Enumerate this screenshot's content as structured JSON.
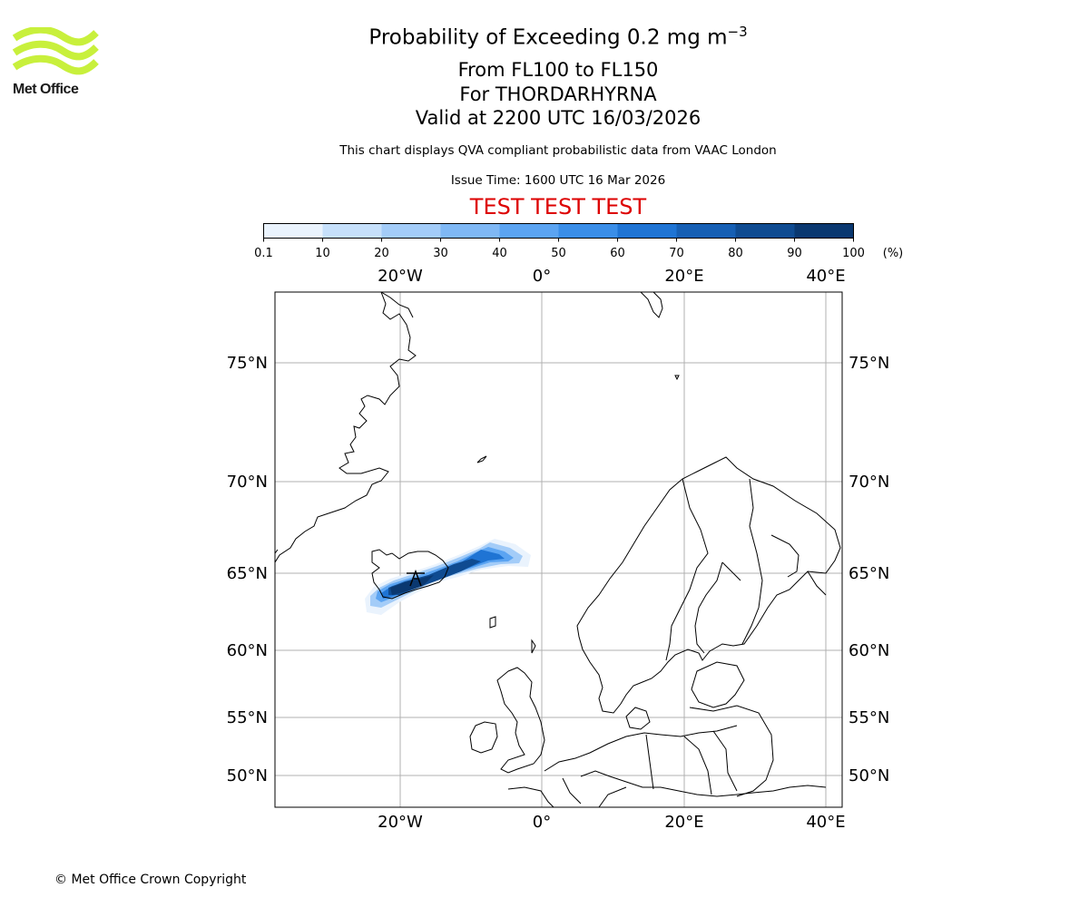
{
  "logo": {
    "text": "Met Office",
    "color": "#c8f03c"
  },
  "title": {
    "main": "Probability of Exceeding 0.2 mg m",
    "main_sup": "−3",
    "line2": "From FL100 to FL150",
    "line3": "For THORDARHYRNA",
    "line4": "Valid at 2200 UTC 16/03/2026"
  },
  "description": "This chart displays QVA compliant probabilistic data from VAAC London",
  "issue_time": "Issue Time: 1600 UTC 16 Mar 2026",
  "test_banner": {
    "text": "TEST TEST TEST",
    "color": "#dd0000"
  },
  "colorbar": {
    "unit": "(%)",
    "ticks": [
      "0.1",
      "10",
      "20",
      "30",
      "40",
      "50",
      "60",
      "70",
      "80",
      "90",
      "100"
    ],
    "colors": [
      "#eaf3fd",
      "#c6e0fb",
      "#a3ccf8",
      "#7fb8f5",
      "#5ba4f2",
      "#3a8ee8",
      "#1f74d4",
      "#165fb4",
      "#0f4b91",
      "#0a3870"
    ]
  },
  "map": {
    "lon_labels": [
      "20°W",
      "0°",
      "20°E",
      "40°E"
    ],
    "lat_labels": [
      "75°N",
      "70°N",
      "65°N",
      "60°N",
      "55°N",
      "50°N"
    ],
    "volcano_name": "THORDARHYRNA",
    "plume_color": "#1565c0"
  },
  "footer": "© Met Office Crown Copyright"
}
